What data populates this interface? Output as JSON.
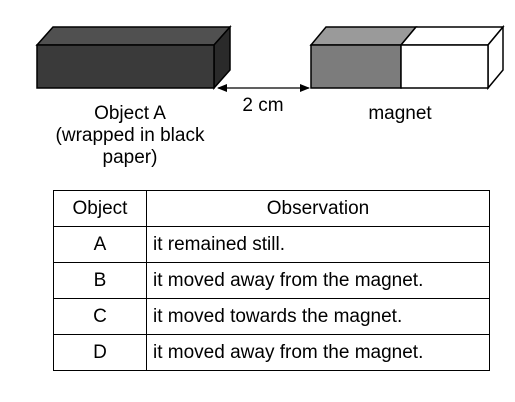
{
  "diagram": {
    "object_a_label": [
      "Object A",
      "(wrapped in black",
      "paper)"
    ],
    "distance_label": "2 cm",
    "magnet_label": "magnet",
    "colors": {
      "object_front": "#3a3a3a",
      "object_top": "#505050",
      "object_side": "#2a2a2a",
      "magnet_dark": "#7c7c7c",
      "magnet_light": "#ffffff"
    }
  },
  "table": {
    "headers": [
      "Object",
      "Observation"
    ],
    "rows": [
      {
        "object": "A",
        "observation": "it remained still."
      },
      {
        "object": "B",
        "observation": "it moved away from the magnet."
      },
      {
        "object": "C",
        "observation": "it moved towards the magnet."
      },
      {
        "object": "D",
        "observation": "it moved away from the magnet."
      }
    ]
  }
}
